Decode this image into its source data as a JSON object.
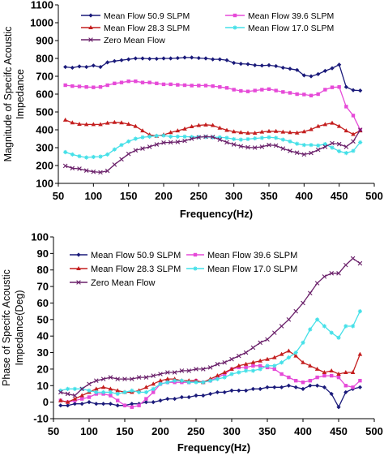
{
  "chart_data": [
    {
      "type": "line",
      "title": "",
      "xlabel": "Frequency(Hz)",
      "ylabel": "Magnitude of Specifc Acoustic Impedance",
      "xlim": [
        50,
        500
      ],
      "ylim": [
        100,
        1100
      ],
      "xticks": [
        50,
        100,
        150,
        200,
        250,
        300,
        350,
        400,
        450,
        500
      ],
      "yticks": [
        100,
        200,
        300,
        400,
        500,
        600,
        700,
        800,
        900,
        1000,
        1100
      ],
      "grid": false,
      "legend_position": "top",
      "x": [
        60,
        70,
        80,
        90,
        100,
        110,
        120,
        130,
        140,
        150,
        160,
        170,
        180,
        190,
        200,
        210,
        220,
        230,
        240,
        250,
        260,
        270,
        280,
        290,
        300,
        310,
        320,
        330,
        340,
        350,
        360,
        370,
        380,
        390,
        400,
        410,
        420,
        430,
        440,
        450,
        460,
        470,
        480
      ],
      "series": [
        {
          "name": "Mean Flow 50.9 SLPM",
          "color": "#1a1a7a",
          "marker": "diamond",
          "values": [
            752,
            748,
            755,
            752,
            760,
            752,
            778,
            785,
            790,
            795,
            800,
            800,
            798,
            798,
            800,
            800,
            802,
            805,
            805,
            802,
            800,
            795,
            795,
            790,
            775,
            770,
            768,
            762,
            760,
            762,
            757,
            748,
            742,
            735,
            705,
            700,
            712,
            730,
            745,
            765,
            640,
            622,
            620
          ]
        },
        {
          "name": "Mean Flow 39.6 SLPM",
          "color": "#e64ad8",
          "marker": "square",
          "values": [
            650,
            645,
            643,
            640,
            638,
            640,
            650,
            660,
            665,
            672,
            672,
            665,
            665,
            660,
            655,
            655,
            652,
            650,
            648,
            648,
            648,
            645,
            640,
            635,
            625,
            618,
            615,
            620,
            625,
            628,
            620,
            612,
            607,
            600,
            598,
            592,
            600,
            625,
            638,
            640,
            530,
            480,
            400
          ]
        },
        {
          "name": "Mean Flow 28.3 SLPM",
          "color": "#c41e1e",
          "marker": "triangle",
          "values": [
            455,
            440,
            432,
            430,
            430,
            430,
            438,
            442,
            440,
            432,
            420,
            395,
            372,
            365,
            372,
            385,
            395,
            405,
            418,
            425,
            428,
            425,
            410,
            398,
            390,
            385,
            382,
            382,
            388,
            392,
            392,
            388,
            385,
            383,
            390,
            402,
            420,
            430,
            438,
            420,
            395,
            375,
            395
          ]
        },
        {
          "name": "Mean Flow 17.0 SLPM",
          "color": "#44e0e8",
          "marker": "star",
          "values": [
            275,
            262,
            252,
            245,
            248,
            250,
            262,
            290,
            315,
            335,
            350,
            358,
            362,
            366,
            368,
            362,
            362,
            362,
            360,
            360,
            360,
            358,
            358,
            355,
            348,
            345,
            348,
            352,
            355,
            358,
            355,
            345,
            335,
            322,
            315,
            315,
            312,
            320,
            300,
            280,
            270,
            282,
            330
          ]
        },
        {
          "name": "Zero Mean Flow",
          "color": "#6a206a",
          "marker": "x",
          "values": [
            198,
            185,
            182,
            172,
            165,
            162,
            170,
            205,
            235,
            265,
            285,
            295,
            305,
            318,
            328,
            330,
            332,
            338,
            350,
            358,
            362,
            360,
            345,
            330,
            318,
            308,
            302,
            300,
            305,
            315,
            312,
            295,
            282,
            272,
            262,
            270,
            288,
            305,
            325,
            320,
            305,
            335,
            400
          ]
        }
      ]
    },
    {
      "type": "line",
      "title": "",
      "xlabel": "Frequency(Hz)",
      "ylabel": "Phase of Specifc Acoustic Impedance(Deg)",
      "xlim": [
        50,
        500
      ],
      "ylim": [
        -10,
        100
      ],
      "xticks": [
        50,
        100,
        150,
        200,
        250,
        300,
        350,
        400,
        450,
        500
      ],
      "yticks": [
        -10,
        0,
        10,
        20,
        30,
        40,
        50,
        60,
        70,
        80,
        90,
        100
      ],
      "grid": false,
      "legend_position": "top",
      "x": [
        60,
        70,
        80,
        90,
        100,
        110,
        120,
        130,
        140,
        150,
        160,
        170,
        180,
        190,
        200,
        210,
        220,
        230,
        240,
        250,
        260,
        270,
        280,
        290,
        300,
        310,
        320,
        330,
        340,
        350,
        360,
        370,
        380,
        390,
        400,
        410,
        420,
        430,
        440,
        450,
        460,
        470,
        480
      ],
      "series": [
        {
          "name": "Mean Flow 50.9 SLPM",
          "color": "#1a1a7a",
          "marker": "diamond",
          "values": [
            -2,
            -2,
            -1,
            -1,
            0,
            -1,
            -1,
            -1,
            -2,
            -2,
            -1,
            -1,
            0,
            0,
            1,
            2,
            2,
            3,
            3,
            4,
            4,
            5,
            6,
            6,
            7,
            7,
            7,
            8,
            8,
            9,
            9,
            9,
            10,
            9,
            8,
            10,
            10,
            9,
            5,
            -3,
            6,
            8,
            9
          ]
        },
        {
          "name": "Mean Flow 39.6 SLPM",
          "color": "#e64ad8",
          "marker": "square",
          "values": [
            1,
            0,
            1,
            2,
            3,
            5,
            5,
            4,
            1,
            -2,
            -3,
            -2,
            2,
            6,
            11,
            12,
            12,
            12,
            12,
            13,
            12,
            13,
            15,
            17,
            20,
            21,
            21,
            22,
            22,
            21,
            20,
            17,
            15,
            13,
            12,
            13,
            15,
            16,
            16,
            15,
            10,
            9,
            13
          ]
        },
        {
          "name": "Mean Flow 28.3 SLPM",
          "color": "#c41e1e",
          "marker": "triangle",
          "values": [
            1,
            0,
            2,
            4,
            6,
            8,
            9,
            8,
            7,
            6,
            6,
            7,
            9,
            11,
            13,
            14,
            14,
            13,
            13,
            13,
            12,
            14,
            16,
            18,
            20,
            22,
            23,
            24,
            25,
            26,
            27,
            29,
            31,
            28,
            24,
            22,
            20,
            18,
            19,
            17,
            18,
            18,
            29
          ]
        },
        {
          "name": "Mean Flow 17.0 SLPM",
          "color": "#44e0e8",
          "marker": "star",
          "values": [
            7,
            8,
            8,
            8,
            7,
            6,
            6,
            6,
            5,
            6,
            7,
            6,
            6,
            8,
            11,
            12,
            13,
            13,
            12,
            12,
            12,
            13,
            14,
            15,
            17,
            18,
            19,
            19,
            20,
            22,
            22,
            24,
            27,
            30,
            36,
            44,
            50,
            46,
            42,
            39,
            46,
            46,
            55
          ]
        },
        {
          "name": "Zero Mean Flow",
          "color": "#6a206a",
          "marker": "x",
          "values": [
            6,
            5,
            4,
            8,
            11,
            13,
            14,
            15,
            14,
            14,
            14,
            15,
            15,
            16,
            17,
            18,
            18,
            19,
            19,
            20,
            20,
            21,
            23,
            24,
            26,
            28,
            30,
            33,
            36,
            38,
            42,
            46,
            50,
            55,
            60,
            66,
            72,
            76,
            78,
            78,
            83,
            87,
            84
          ]
        }
      ]
    }
  ]
}
